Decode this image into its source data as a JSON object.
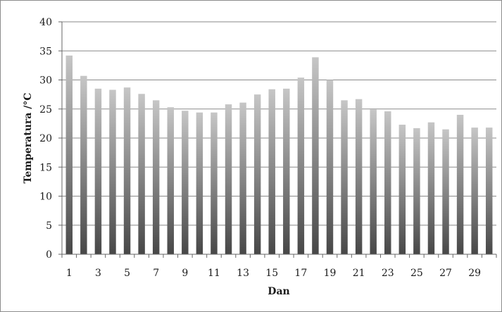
{
  "chart_data": {
    "type": "bar",
    "xlabel": "Dan",
    "ylabel": "Temperatura /°C",
    "ylim": [
      0,
      40
    ],
    "yticks": [
      0,
      5,
      10,
      15,
      20,
      25,
      30,
      35,
      40
    ],
    "x_tick_labels_shown": [
      "1",
      "3",
      "5",
      "7",
      "9",
      "11",
      "13",
      "15",
      "17",
      "19",
      "21",
      "23",
      "25",
      "27",
      "29"
    ],
    "grid": true,
    "legend": "none",
    "categories": [
      1,
      2,
      3,
      4,
      5,
      6,
      7,
      8,
      9,
      10,
      11,
      12,
      13,
      14,
      15,
      16,
      17,
      18,
      19,
      20,
      21,
      22,
      23,
      24,
      25,
      26,
      27,
      28,
      29,
      30
    ],
    "values": [
      34.2,
      30.7,
      28.5,
      28.3,
      28.7,
      27.6,
      26.5,
      25.3,
      24.7,
      24.4,
      24.4,
      25.8,
      26.1,
      27.5,
      28.4,
      28.5,
      30.4,
      33.9,
      30.0,
      26.5,
      26.7,
      24.9,
      24.6,
      22.3,
      21.7,
      22.7,
      21.5,
      24.0,
      21.8,
      21.8
    ],
    "colors": {
      "bar_top": "#c4c4c4",
      "bar_bottom": "#4a4a4a",
      "grid": "#8a8a8a",
      "axis": "#666666"
    }
  }
}
